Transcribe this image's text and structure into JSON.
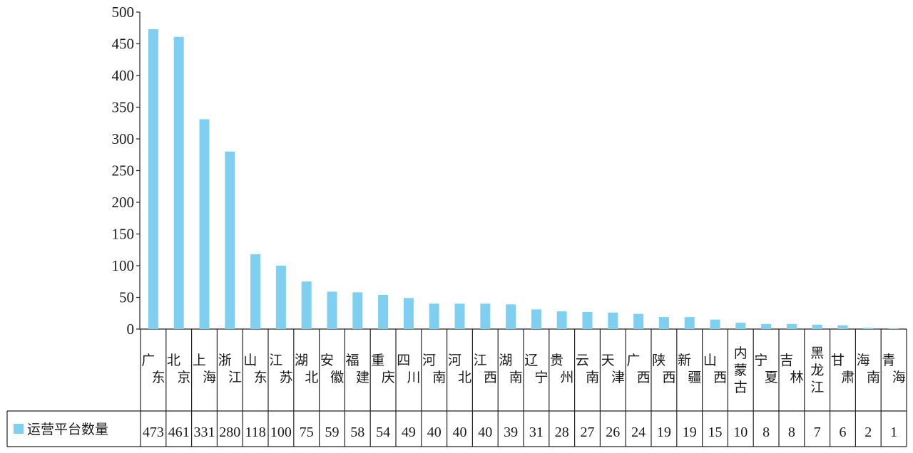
{
  "chart_data": {
    "type": "bar",
    "title": "",
    "xlabel": "",
    "ylabel": "",
    "ylim": [
      0,
      500
    ],
    "yticks": [
      0,
      50,
      100,
      150,
      200,
      250,
      300,
      350,
      400,
      450,
      500
    ],
    "grid": false,
    "legend_position": "bottom-left (in data table)",
    "bar_color": "#7fcff0",
    "categories": [
      "广东",
      "北京",
      "上海",
      "浙江",
      "山东",
      "江苏",
      "湖北",
      "安徽",
      "福建",
      "重庆",
      "四川",
      "河南",
      "河北",
      "江西",
      "湖南",
      "辽宁",
      "贵州",
      "云南",
      "天津",
      "广西",
      "陕西",
      "新疆",
      "山西",
      "内蒙古",
      "宁夏",
      "吉林",
      "黑龙江",
      "甘肃",
      "海南",
      "青海"
    ],
    "series": [
      {
        "name": "运营平台数量",
        "values": [
          473,
          461,
          331,
          280,
          118,
          100,
          75,
          59,
          58,
          54,
          49,
          40,
          40,
          40,
          39,
          31,
          28,
          27,
          26,
          24,
          19,
          19,
          15,
          10,
          8,
          8,
          7,
          6,
          2,
          1
        ]
      }
    ]
  }
}
